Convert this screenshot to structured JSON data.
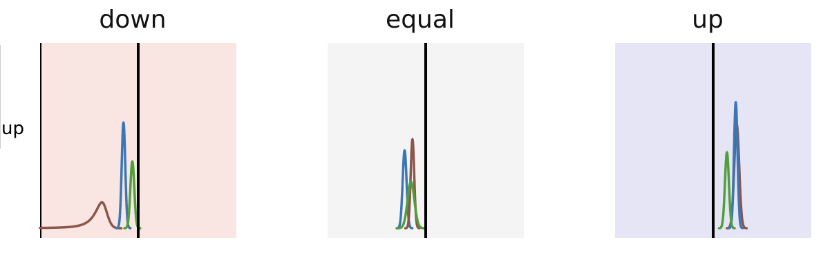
{
  "row_label": "up",
  "chart_data": [
    {
      "type": "line",
      "title": "down",
      "background": "#f9e5e1",
      "xlim": [
        -1,
        1
      ],
      "ylim": [
        0,
        1
      ],
      "vline": 0,
      "left_spine": true,
      "series": [
        {
          "color": "#8c564b",
          "kind": "skewed",
          "mu": -0.37,
          "sigma": 0.05,
          "peak": 0.14,
          "tail": 0.8,
          "tail_base": 0.0
        },
        {
          "color": "#3b76b5",
          "kind": "gauss",
          "mu": -0.15,
          "sigma": 0.018,
          "peak": 0.57
        },
        {
          "color": "#4fa03a",
          "kind": "gauss",
          "mu": -0.06,
          "sigma": 0.02,
          "peak": 0.36
        }
      ]
    },
    {
      "type": "line",
      "title": "equal",
      "background": "#f4f4f4",
      "xlim": [
        -1,
        1
      ],
      "ylim": [
        0,
        1
      ],
      "vline": 0,
      "left_spine": false,
      "series": [
        {
          "color": "#3b76b5",
          "kind": "gauss",
          "mu": -0.215,
          "sigma": 0.02,
          "peak": 0.42
        },
        {
          "color": "#8c564b",
          "kind": "gauss",
          "mu": -0.135,
          "sigma": 0.018,
          "peak": 0.48
        },
        {
          "color": "#4fa03a",
          "kind": "gauss",
          "mu": -0.15,
          "sigma": 0.035,
          "peak": 0.25
        }
      ]
    },
    {
      "type": "line",
      "title": "up",
      "background": "#e6e5f6",
      "xlim": [
        -1,
        1
      ],
      "ylim": [
        0,
        1
      ],
      "vline": 0,
      "left_spine": false,
      "series": [
        {
          "color": "#8c564b",
          "kind": "gauss",
          "mu": 0.24,
          "sigma": 0.025,
          "peak": 0.56
        },
        {
          "color": "#3b76b5",
          "kind": "gauss",
          "mu": 0.23,
          "sigma": 0.018,
          "peak": 0.68
        },
        {
          "color": "#4fa03a",
          "kind": "gauss",
          "mu": 0.14,
          "sigma": 0.02,
          "peak": 0.41
        }
      ]
    }
  ]
}
